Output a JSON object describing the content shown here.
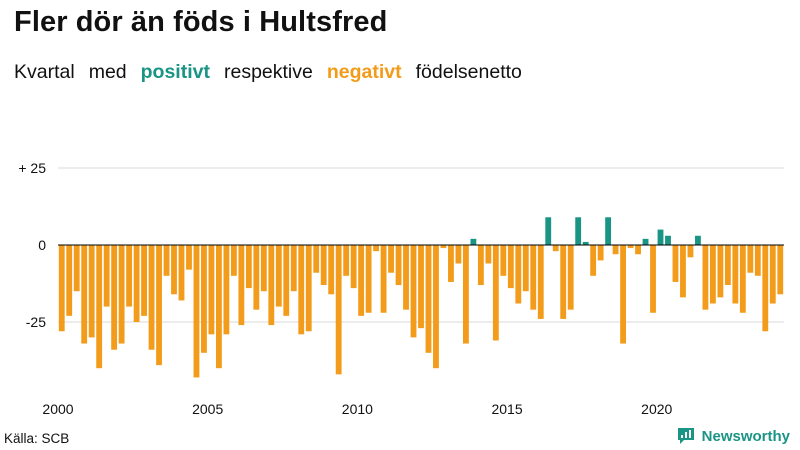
{
  "title": "Fler dör än föds i Hultsfred",
  "subtitle": {
    "w1": "Kvartal",
    "w2": "med",
    "positive_word": "positivt",
    "w3": "respektive",
    "negative_word": "negativt",
    "w4": "födelsenetto"
  },
  "source": "Källa: SCB",
  "brand": "Newsworthy",
  "colors": {
    "positive": "#1a9585",
    "negative": "#f39c1b",
    "axis": "#000000",
    "grid": "#d9d9d9"
  },
  "chart_data": {
    "type": "bar",
    "title": "Fler dör än föds i Hultsfred",
    "subtitle": "Kvartal med positivt respektive negativt födelsenetto",
    "xlabel": "",
    "ylabel": "",
    "ylim": [
      -45,
      25
    ],
    "yticks": [
      {
        "value": 25,
        "label": "+ 25"
      },
      {
        "value": 0,
        "label": "0"
      },
      {
        "value": -25,
        "label": "-25"
      }
    ],
    "xticks": [
      "2000",
      "2005",
      "2010",
      "2015",
      "2020"
    ],
    "start_year": 2000,
    "periods_per_year": 4,
    "values": [
      -28,
      -23,
      -15,
      -32,
      -30,
      -40,
      -20,
      -34,
      -32,
      -20,
      -25,
      -23,
      -34,
      -39,
      -10,
      -16,
      -18,
      -8,
      -43,
      -35,
      -29,
      -40,
      -29,
      -10,
      -26,
      -14,
      -21,
      -15,
      -26,
      -20,
      -23,
      -15,
      -29,
      -28,
      -9,
      -13,
      -16,
      -42,
      -10,
      -14,
      -23,
      -22,
      -2,
      -22,
      -9,
      -13,
      -21,
      -30,
      -27,
      -35,
      -40,
      -1,
      -12,
      -6,
      -32,
      2,
      -13,
      -6,
      -31,
      -10,
      -14,
      -19,
      -15,
      -21,
      -24,
      9,
      -2,
      -24,
      -21,
      9,
      1,
      -10,
      -5,
      9,
      -3,
      -32,
      -1,
      -3,
      2,
      -22,
      5,
      3,
      -12,
      -17,
      -4,
      3,
      -21,
      -19,
      -17,
      -13,
      -19,
      -22,
      -9,
      -10,
      -28,
      -19,
      -16
    ]
  }
}
